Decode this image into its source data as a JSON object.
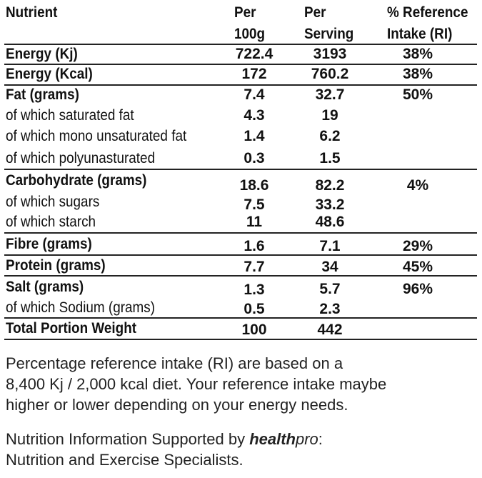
{
  "header": {
    "nutrient": "Nutrient",
    "per100_l1": "Per",
    "per100_l2": "100g",
    "serving_l1": "Per",
    "serving_l2": "Serving",
    "ri_l1": "% Reference",
    "ri_l2": "Intake (RI)"
  },
  "rows": [
    {
      "label": "Energy (Kj)",
      "per100": "722.4",
      "serving": "3193",
      "ri": "38%"
    },
    {
      "label": "Energy (Kcal)",
      "per100": "172",
      "serving": "760.2",
      "ri": "38%"
    },
    {
      "label": "Fat (grams)",
      "per100": "7.4",
      "serving": "32.7",
      "ri": "50%"
    },
    {
      "label": "of which saturated fat",
      "per100": "4.3",
      "serving": "19",
      "ri": ""
    },
    {
      "label": "of which mono unsaturated fat",
      "per100": "1.4",
      "serving": "6.2",
      "ri": ""
    },
    {
      "label": "of which polyunasturated",
      "per100": "0.3",
      "serving": "1.5",
      "ri": ""
    },
    {
      "label": "Carbohydrate (grams)",
      "per100": "18.6",
      "serving": "82.2",
      "ri": "4%"
    },
    {
      "label": "of which sugars",
      "per100": "7.5",
      "serving": "33.2",
      "ri": ""
    },
    {
      "label": "of which starch",
      "per100": "11",
      "serving": "48.6",
      "ri": ""
    },
    {
      "label": "Fibre (grams)",
      "per100": "1.6",
      "serving": "7.1",
      "ri": "29%"
    },
    {
      "label": "Protein (grams)",
      "per100": "7.7",
      "serving": "34",
      "ri": "45%"
    },
    {
      "label": "Salt (grams)",
      "per100": "1.3",
      "serving": "5.7",
      "ri": "96%"
    },
    {
      "label": "of which Sodium (grams)",
      "per100": "0.5",
      "serving": "2.3",
      "ri": ""
    },
    {
      "label": "Total Portion Weight",
      "per100": "100",
      "serving": "442",
      "ri": ""
    }
  ],
  "note": {
    "line1": "Percentage reference intake (RI) are based on a",
    "line2": "8,400 Kj / 2,000 kcal diet. Your reference intake maybe",
    "line3": "higher or lower depending on your energy needs."
  },
  "credit": {
    "prefix": "Nutrition Information Supported by ",
    "brand_bold": "health",
    "brand_italic": "pro",
    "suffix": ":",
    "line2": "Nutrition and Exercise Specialists."
  }
}
